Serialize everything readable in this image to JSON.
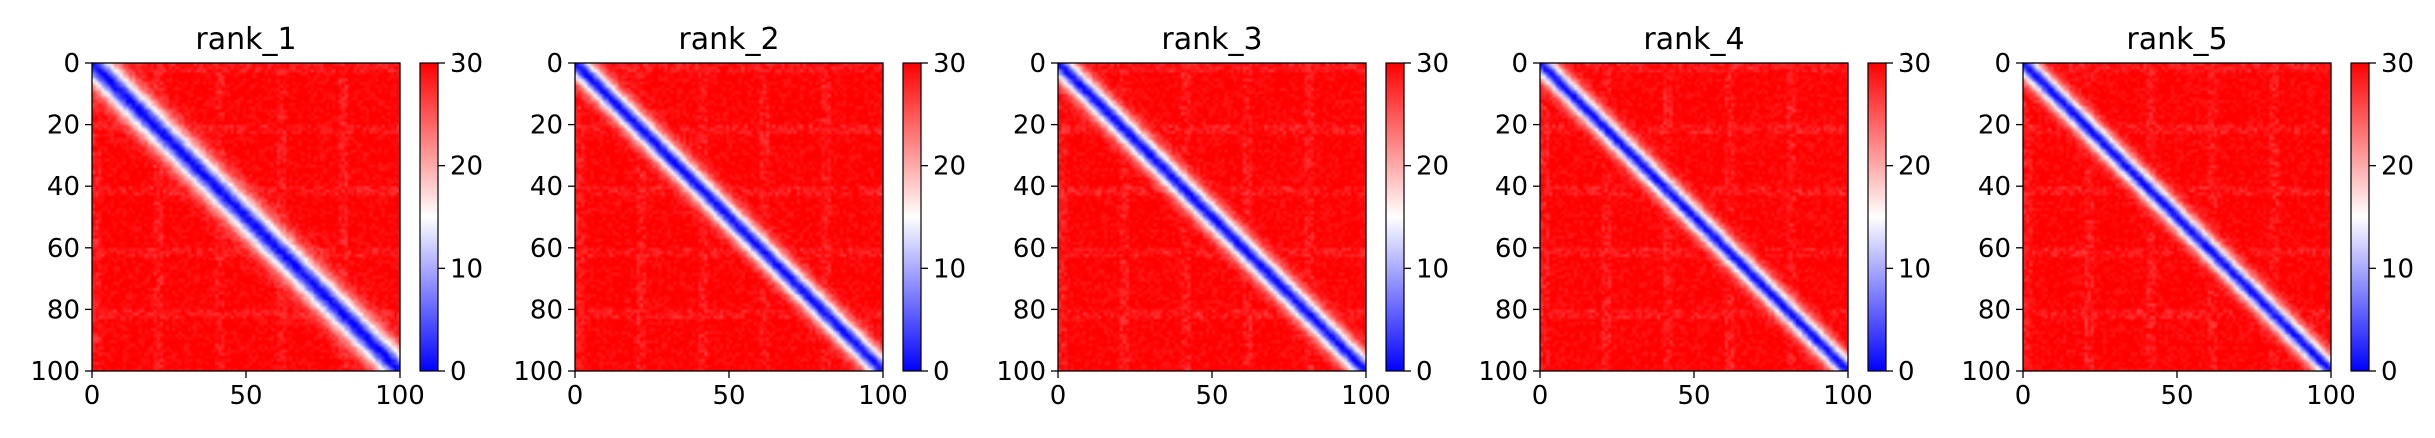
{
  "chart_data": [
    {
      "type": "heatmap",
      "title": "rank_1",
      "xlim": [
        0,
        100
      ],
      "ylim": [
        100,
        0
      ],
      "x_ticks": [
        "0",
        "50",
        "100"
      ],
      "y_ticks": [
        "0",
        "20",
        "40",
        "60",
        "80",
        "100"
      ],
      "colorbar": {
        "min": 0,
        "max": 30,
        "ticks": [
          "0",
          "10",
          "20",
          "30"
        ],
        "colormap": "bwr"
      },
      "band_width": 6.5,
      "matrix_size": 100,
      "diagonal_value": 0,
      "offdiagonal_value": 30
    },
    {
      "type": "heatmap",
      "title": "rank_2",
      "xlim": [
        0,
        100
      ],
      "ylim": [
        100,
        0
      ],
      "x_ticks": [
        "0",
        "50",
        "100"
      ],
      "y_ticks": [
        "0",
        "20",
        "40",
        "60",
        "80",
        "100"
      ],
      "colorbar": {
        "min": 0,
        "max": 30,
        "ticks": [
          "0",
          "10",
          "20",
          "30"
        ],
        "colormap": "bwr"
      },
      "band_width": 5,
      "matrix_size": 100,
      "diagonal_value": 0,
      "offdiagonal_value": 30
    },
    {
      "type": "heatmap",
      "title": "rank_3",
      "xlim": [
        0,
        100
      ],
      "ylim": [
        100,
        0
      ],
      "x_ticks": [
        "0",
        "50",
        "100"
      ],
      "y_ticks": [
        "0",
        "20",
        "40",
        "60",
        "80",
        "100"
      ],
      "colorbar": {
        "min": 0,
        "max": 30,
        "ticks": [
          "0",
          "10",
          "20",
          "30"
        ],
        "colormap": "bwr"
      },
      "band_width": 5,
      "matrix_size": 100,
      "diagonal_value": 0,
      "offdiagonal_value": 30
    },
    {
      "type": "heatmap",
      "title": "rank_4",
      "xlim": [
        0,
        100
      ],
      "ylim": [
        100,
        0
      ],
      "x_ticks": [
        "0",
        "50",
        "100"
      ],
      "y_ticks": [
        "0",
        "20",
        "40",
        "60",
        "80",
        "100"
      ],
      "colorbar": {
        "min": 0,
        "max": 30,
        "ticks": [
          "0",
          "10",
          "20",
          "30"
        ],
        "colormap": "bwr"
      },
      "band_width": 4.5,
      "matrix_size": 100,
      "diagonal_value": 0,
      "offdiagonal_value": 30
    },
    {
      "type": "heatmap",
      "title": "rank_5",
      "xlim": [
        0,
        100
      ],
      "ylim": [
        100,
        0
      ],
      "x_ticks": [
        "0",
        "50",
        "100"
      ],
      "y_ticks": [
        "0",
        "20",
        "40",
        "60",
        "80",
        "100"
      ],
      "colorbar": {
        "min": 0,
        "max": 30,
        "ticks": [
          "0",
          "10",
          "20",
          "30"
        ],
        "colormap": "bwr"
      },
      "band_width": 4.5,
      "matrix_size": 100,
      "diagonal_value": 0,
      "offdiagonal_value": 30
    }
  ],
  "colors": {
    "low": "#0000ff",
    "mid": "#ffffff",
    "high": "#ff0000"
  }
}
